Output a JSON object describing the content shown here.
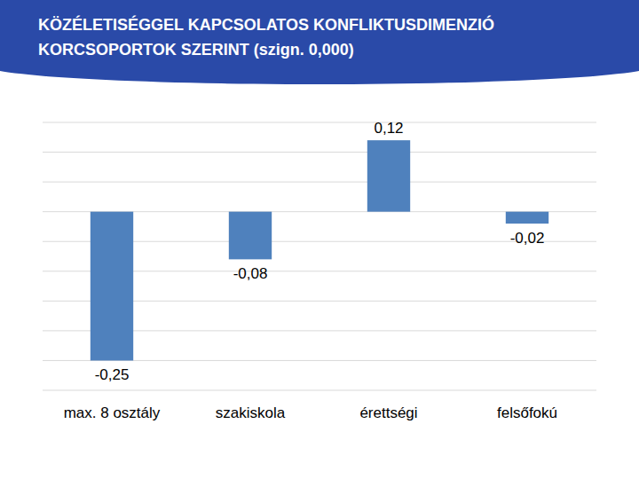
{
  "chart_data": {
    "type": "bar",
    "title": "KÖZÉLETISÉGGEL KAPCSOLATOS KONFLIKTUSDIMENZIÓ KORCSOPORTOK SZERINT (szign. 0,000)",
    "categories": [
      "max. 8 osztály",
      "szakiskola",
      "érettségi",
      "felsőfokú"
    ],
    "values": [
      -0.25,
      -0.08,
      0.12,
      -0.02
    ],
    "value_labels": [
      "-0,25",
      "-0,08",
      "0,12",
      "-0,02"
    ],
    "color": "#4f81bd",
    "ylim": [
      -0.3,
      0.15
    ],
    "yticks": [
      -0.3,
      -0.25,
      -0.2,
      -0.15,
      -0.1,
      -0.05,
      0,
      0.05,
      0.1,
      0.15
    ],
    "grid": true,
    "data_labels": true,
    "tick_labels": "x"
  }
}
